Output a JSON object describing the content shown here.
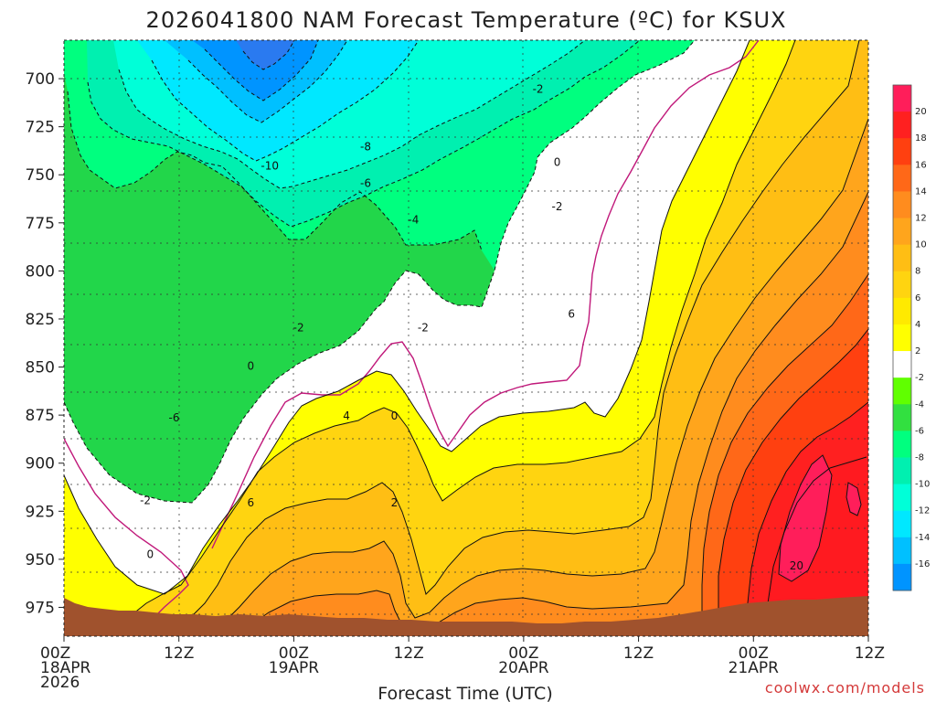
{
  "chart_data": {
    "type": "heatmap",
    "title": "2026041800 NAM Forecast Temperature (ºC) for KSUX",
    "xlabel": "Forecast Time (UTC)",
    "ylabel": "",
    "y_levels": [
      700,
      725,
      750,
      775,
      800,
      825,
      850,
      875,
      900,
      925,
      950,
      975
    ],
    "ylim": [
      680,
      990
    ],
    "x_hours": [
      0,
      12,
      24,
      36,
      48,
      60,
      72,
      84
    ],
    "x_tick_labels": [
      {
        "hour": 0,
        "lines": [
          "00Z",
          "18APR",
          "2026"
        ]
      },
      {
        "hour": 12,
        "lines": [
          "12Z"
        ]
      },
      {
        "hour": 24,
        "lines": [
          "00Z",
          "19APR"
        ]
      },
      {
        "hour": 36,
        "lines": [
          "12Z"
        ]
      },
      {
        "hour": 48,
        "lines": [
          "00Z",
          "20APR"
        ]
      },
      {
        "hour": 60,
        "lines": [
          "12Z"
        ]
      },
      {
        "hour": 72,
        "lines": [
          "00Z",
          "21APR"
        ]
      },
      {
        "hour": 84,
        "lines": [
          "12Z"
        ]
      }
    ],
    "colorbar": {
      "labels": [
        "20",
        "18",
        "16",
        "14",
        "12",
        "10",
        "8",
        "6",
        "4",
        "2",
        "-2",
        "-4",
        "-6",
        "-8",
        "-10",
        "-12",
        "-14",
        "-16"
      ],
      "colors": [
        "#ff1e5a",
        "#ff2020",
        "#ff4010",
        "#ff6818",
        "#ff8c1e",
        "#ffa51c",
        "#ffbe14",
        "#ffd410",
        "#ffea00",
        "#ffff00",
        "#ffffff",
        "#60ff00",
        "#32e040",
        "#00ff7f",
        "#00f0b0",
        "#00ffd8",
        "#00e8ff",
        "#00c0ff",
        "#0094ff"
      ]
    },
    "grid": true,
    "contour_labels": [
      {
        "text": "-2",
        "p": 705,
        "h": 49.5
      },
      {
        "text": "-8",
        "p": 735,
        "h": 31.5
      },
      {
        "text": "-10",
        "p": 745,
        "h": 21.5
      },
      {
        "text": "0",
        "p": 743,
        "h": 51.5
      },
      {
        "text": "-6",
        "p": 754,
        "h": 31.5
      },
      {
        "text": "-2",
        "p": 766,
        "h": 51.5
      },
      {
        "text": "-4",
        "p": 773,
        "h": 36.5
      },
      {
        "text": "6",
        "p": 822,
        "h": 53.0
      },
      {
        "text": "-2",
        "p": 829,
        "h": 24.5
      },
      {
        "text": "-2",
        "p": 829,
        "h": 37.5
      },
      {
        "text": "0",
        "p": 849,
        "h": 19.5
      },
      {
        "text": "4",
        "p": 875,
        "h": 29.5
      },
      {
        "text": "0",
        "p": 875,
        "h": 34.5
      },
      {
        "text": "-6",
        "p": 876,
        "h": 11.5
      },
      {
        "text": "6",
        "p": 920,
        "h": 19.5
      },
      {
        "text": "2",
        "p": 920,
        "h": 34.5
      },
      {
        "text": "-2",
        "p": 919,
        "h": 8.5
      },
      {
        "text": "0",
        "p": 947,
        "h": 9.0
      },
      {
        "text": "20",
        "p": 953,
        "h": 76.5
      }
    ],
    "max_value_label": "20",
    "min_value_label": "-16"
  },
  "credit": "coolwx.com/models"
}
